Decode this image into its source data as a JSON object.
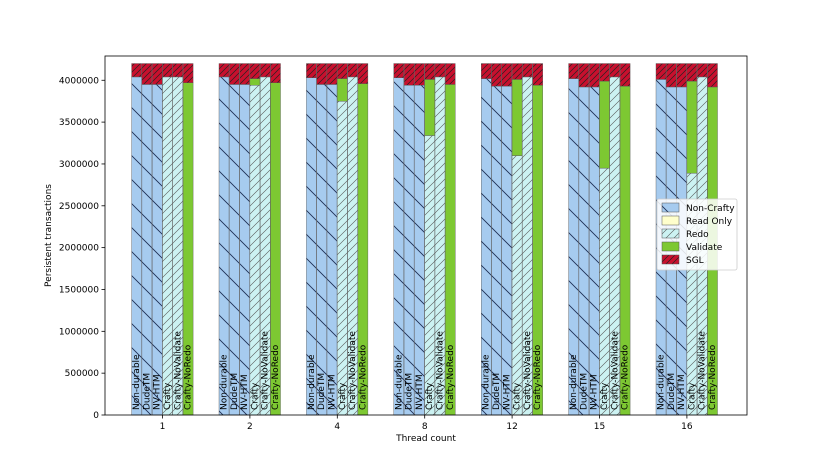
{
  "chart_data": {
    "type": "bar",
    "subtype": "stacked-grouped",
    "title": "",
    "xlabel": "Thread count",
    "ylabel": "Persistent transactions",
    "ylim": [
      0,
      4290000
    ],
    "yticks": [
      0,
      500000,
      1000000,
      1500000,
      2000000,
      2500000,
      3000000,
      3500000,
      4000000
    ],
    "ytick_labels": [
      "0",
      "500000",
      "1000000",
      "1500000",
      "2000000",
      "2500000",
      "3000000",
      "3500000",
      "4000000"
    ],
    "groups": [
      "1",
      "2",
      "4",
      "8",
      "12",
      "15",
      "16"
    ],
    "variants": [
      "Non-durable",
      "DudeTM",
      "NV-HTM",
      "Crafty",
      "Crafty-NoValidate",
      "Crafty-NoRedo"
    ],
    "legend": {
      "position": "center-right",
      "entries": [
        {
          "name": "Non-Crafty",
          "color": "#a6cbef",
          "pattern": "back-diag"
        },
        {
          "name": "Read Only",
          "color": "#ffffcc",
          "pattern": "none"
        },
        {
          "name": "Redo",
          "color": "#ccf2f2",
          "pattern": "fwd-diag"
        },
        {
          "name": "Validate",
          "color": "#7dc832",
          "pattern": "none"
        },
        {
          "name": "SGL",
          "color": "#c8102e",
          "pattern": "cross"
        }
      ]
    },
    "stacks": [
      [
        {
          "noncrafty": 4040000,
          "readonly": 0,
          "redo": 0,
          "validate": 0,
          "sgl": 160000
        },
        {
          "noncrafty": 3950000,
          "readonly": 0,
          "redo": 0,
          "validate": 0,
          "sgl": 250000
        },
        {
          "noncrafty": 3950000,
          "readonly": 0,
          "redo": 0,
          "validate": 0,
          "sgl": 250000
        },
        {
          "noncrafty": 0,
          "readonly": 0,
          "redo": 4040000,
          "validate": 0,
          "sgl": 160000
        },
        {
          "noncrafty": 0,
          "readonly": 0,
          "redo": 4040000,
          "validate": 0,
          "sgl": 160000
        },
        {
          "noncrafty": 0,
          "readonly": 0,
          "redo": 0,
          "validate": 3970000,
          "sgl": 230000
        }
      ],
      [
        {
          "noncrafty": 4040000,
          "readonly": 0,
          "redo": 0,
          "validate": 0,
          "sgl": 160000
        },
        {
          "noncrafty": 3950000,
          "readonly": 0,
          "redo": 0,
          "validate": 0,
          "sgl": 250000
        },
        {
          "noncrafty": 3950000,
          "readonly": 0,
          "redo": 0,
          "validate": 0,
          "sgl": 250000
        },
        {
          "noncrafty": 0,
          "readonly": 0,
          "redo": 3940000,
          "validate": 80000,
          "sgl": 180000
        },
        {
          "noncrafty": 0,
          "readonly": 0,
          "redo": 4040000,
          "validate": 0,
          "sgl": 160000
        },
        {
          "noncrafty": 0,
          "readonly": 0,
          "redo": 0,
          "validate": 3970000,
          "sgl": 230000
        }
      ],
      [
        {
          "noncrafty": 4030000,
          "readonly": 0,
          "redo": 0,
          "validate": 0,
          "sgl": 170000
        },
        {
          "noncrafty": 3950000,
          "readonly": 0,
          "redo": 0,
          "validate": 0,
          "sgl": 250000
        },
        {
          "noncrafty": 3950000,
          "readonly": 0,
          "redo": 0,
          "validate": 0,
          "sgl": 250000
        },
        {
          "noncrafty": 0,
          "readonly": 0,
          "redo": 3750000,
          "validate": 270000,
          "sgl": 180000
        },
        {
          "noncrafty": 0,
          "readonly": 0,
          "redo": 4040000,
          "validate": 0,
          "sgl": 160000
        },
        {
          "noncrafty": 0,
          "readonly": 0,
          "redo": 0,
          "validate": 3960000,
          "sgl": 240000
        }
      ],
      [
        {
          "noncrafty": 4030000,
          "readonly": 0,
          "redo": 0,
          "validate": 0,
          "sgl": 170000
        },
        {
          "noncrafty": 3940000,
          "readonly": 0,
          "redo": 0,
          "validate": 0,
          "sgl": 260000
        },
        {
          "noncrafty": 3940000,
          "readonly": 0,
          "redo": 0,
          "validate": 0,
          "sgl": 260000
        },
        {
          "noncrafty": 0,
          "readonly": 0,
          "redo": 3340000,
          "validate": 670000,
          "sgl": 190000
        },
        {
          "noncrafty": 0,
          "readonly": 0,
          "redo": 4040000,
          "validate": 0,
          "sgl": 160000
        },
        {
          "noncrafty": 0,
          "readonly": 0,
          "redo": 0,
          "validate": 3950000,
          "sgl": 250000
        }
      ],
      [
        {
          "noncrafty": 4020000,
          "readonly": 0,
          "redo": 0,
          "validate": 0,
          "sgl": 180000
        },
        {
          "noncrafty": 3930000,
          "readonly": 0,
          "redo": 0,
          "validate": 0,
          "sgl": 270000
        },
        {
          "noncrafty": 3930000,
          "readonly": 0,
          "redo": 0,
          "validate": 0,
          "sgl": 270000
        },
        {
          "noncrafty": 0,
          "readonly": 0,
          "redo": 3100000,
          "validate": 910000,
          "sgl": 190000
        },
        {
          "noncrafty": 0,
          "readonly": 0,
          "redo": 4040000,
          "validate": 0,
          "sgl": 160000
        },
        {
          "noncrafty": 0,
          "readonly": 0,
          "redo": 0,
          "validate": 3940000,
          "sgl": 260000
        }
      ],
      [
        {
          "noncrafty": 4020000,
          "readonly": 0,
          "redo": 0,
          "validate": 0,
          "sgl": 180000
        },
        {
          "noncrafty": 3920000,
          "readonly": 0,
          "redo": 0,
          "validate": 0,
          "sgl": 280000
        },
        {
          "noncrafty": 3920000,
          "readonly": 0,
          "redo": 0,
          "validate": 0,
          "sgl": 280000
        },
        {
          "noncrafty": 0,
          "readonly": 0,
          "redo": 2950000,
          "validate": 1040000,
          "sgl": 210000
        },
        {
          "noncrafty": 0,
          "readonly": 0,
          "redo": 4040000,
          "validate": 0,
          "sgl": 160000
        },
        {
          "noncrafty": 0,
          "readonly": 0,
          "redo": 0,
          "validate": 3930000,
          "sgl": 270000
        }
      ],
      [
        {
          "noncrafty": 4010000,
          "readonly": 0,
          "redo": 0,
          "validate": 0,
          "sgl": 190000
        },
        {
          "noncrafty": 3920000,
          "readonly": 0,
          "redo": 0,
          "validate": 0,
          "sgl": 280000
        },
        {
          "noncrafty": 3920000,
          "readonly": 0,
          "redo": 0,
          "validate": 0,
          "sgl": 280000
        },
        {
          "noncrafty": 0,
          "readonly": 0,
          "redo": 2890000,
          "validate": 1100000,
          "sgl": 210000
        },
        {
          "noncrafty": 0,
          "readonly": 0,
          "redo": 4040000,
          "validate": 0,
          "sgl": 160000
        },
        {
          "noncrafty": 0,
          "readonly": 0,
          "redo": 0,
          "validate": 3920000,
          "sgl": 280000
        }
      ]
    ]
  }
}
